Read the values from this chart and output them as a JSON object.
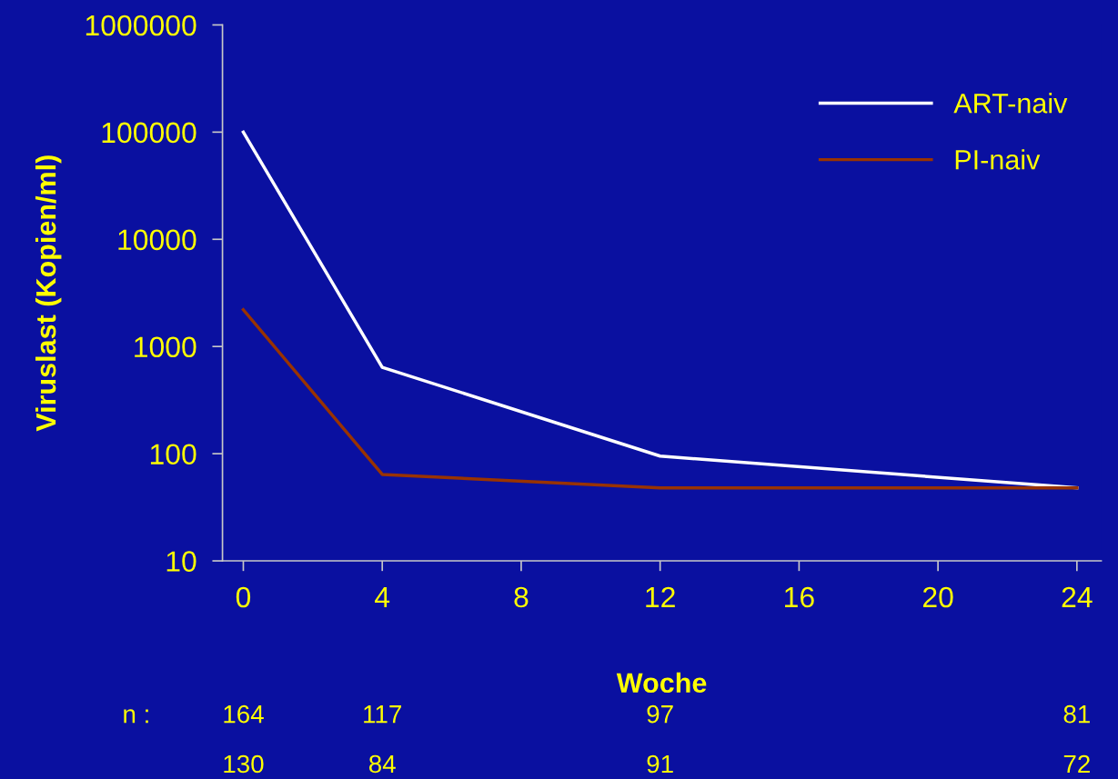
{
  "chart_data": {
    "type": "line",
    "xlabel": "Woche",
    "ylabel": "Viruslast (Kopien/ml)",
    "log": "y",
    "xlim": [
      -0.6,
      24.7
    ],
    "xticks": [
      0,
      4,
      8,
      12,
      16,
      20,
      24
    ],
    "ylim": [
      10,
      1000000
    ],
    "yticks": [
      10,
      100,
      1000,
      10000,
      100000,
      1000000
    ],
    "grid": false,
    "legend": "top right",
    "marker": "none",
    "line_style": "solid",
    "series": [
      {
        "name": "ART-naiv",
        "color": "#ffffff",
        "x": [
          0,
          4,
          12,
          24
        ],
        "values": [
          100000,
          640,
          95,
          48
        ]
      },
      {
        "name": "PI-naiv",
        "color": "#993300",
        "x": [
          0,
          4,
          12,
          24
        ],
        "values": [
          2200,
          64,
          48,
          48
        ]
      }
    ],
    "annotations": [
      "n :",
      "164",
      "117",
      "97",
      "81",
      "130",
      "84",
      "91",
      "72"
    ]
  }
}
